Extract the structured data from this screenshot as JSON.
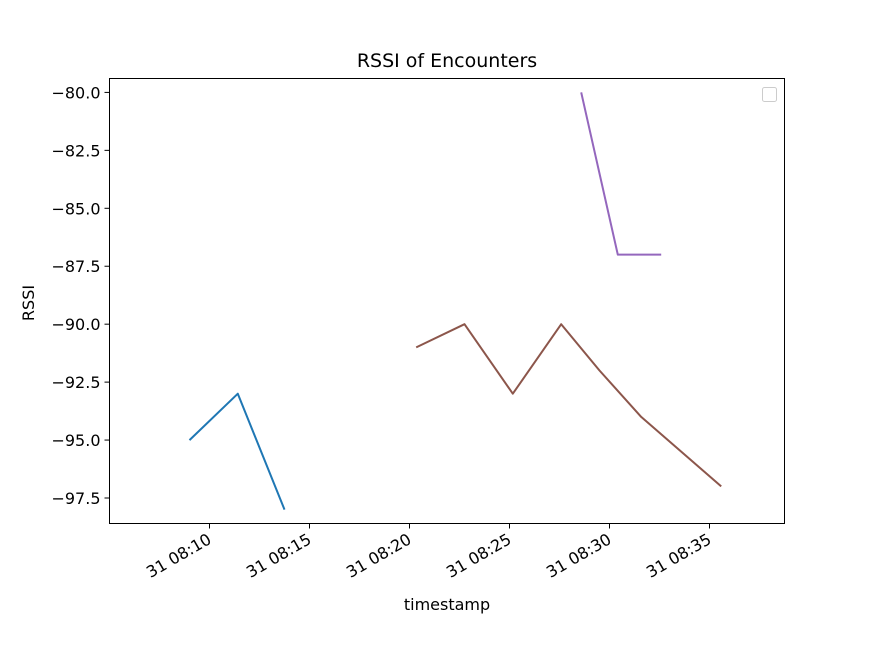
{
  "chart_data": {
    "type": "line",
    "title": "RSSI of Encounters",
    "xlabel": "timestamp",
    "ylabel": "RSSI",
    "x_ticks": [
      "31 08:10",
      "31 08:15",
      "31 08:20",
      "31 08:25",
      "31 08:30",
      "31 08:35"
    ],
    "y_ticks": [
      "−80.0",
      "−82.5",
      "−85.0",
      "−87.5",
      "−90.0",
      "−92.5",
      "−95.0",
      "−97.5"
    ],
    "ylim": [
      -98.6,
      -79.4
    ],
    "xlim": [
      "08:05:00",
      "08:38:45"
    ],
    "grid": false,
    "legend": "top-right (empty)",
    "series": [
      {
        "color": "#1f77b4",
        "x": [
          "08:09:00",
          "08:11:25",
          "08:13:45"
        ],
        "y": [
          -95,
          -93,
          -98
        ]
      },
      {
        "color": "#8c564b",
        "x": [
          "08:20:20",
          "08:22:45",
          "08:25:10",
          "08:27:35",
          "08:29:30",
          "08:31:35",
          "08:35:35"
        ],
        "y": [
          -91,
          -90,
          -93,
          -90,
          -92,
          -94,
          -97
        ]
      },
      {
        "color": "#9467bd",
        "x": [
          "08:28:35",
          "08:30:25",
          "08:32:35"
        ],
        "y": [
          -80,
          -87,
          -87
        ]
      }
    ]
  }
}
